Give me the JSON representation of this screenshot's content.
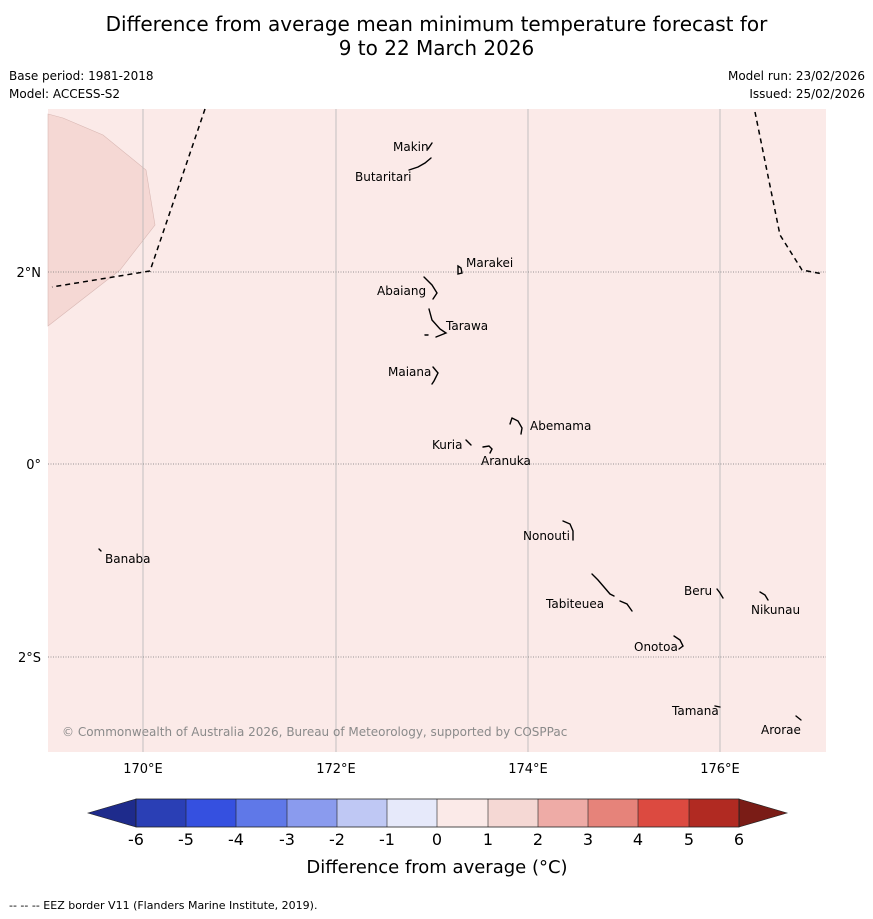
{
  "title": {
    "line1": "Difference from average mean minimum temperature forecast for",
    "line2": "9 to 22 March 2026"
  },
  "meta": {
    "base_period": "Base period: 1981-2018",
    "model": "Model: ACCESS-S2",
    "model_run": "Model run: 23/02/2026",
    "issued": "Issued: 25/02/2026"
  },
  "map": {
    "lon_labels": [
      "170°E",
      "172°E",
      "174°E",
      "176°E"
    ],
    "lat_labels": [
      "2°N",
      "0°",
      "2°S"
    ],
    "places": [
      "Makin",
      "Butaritari",
      "Marakei",
      "Abaiang",
      "Tarawa",
      "Maiana",
      "Abemama",
      "Kuria",
      "Aranuka",
      "Nonouti",
      "Banaba",
      "Beru",
      "Nikunau",
      "Tabiteuea",
      "Onotoa",
      "Tamana",
      "Arorae"
    ],
    "copyright": "© Commonwealth of Australia 2026, Bureau of Meteorology, supported by COSPPac",
    "colors": {
      "background_anomaly": "#fbeae8",
      "warm_patch": "#f5d8d4",
      "grid": "#aaaaaa"
    }
  },
  "colorbar": {
    "ticks": [
      "-6",
      "-5",
      "-4",
      "-3",
      "-2",
      "-1",
      "0",
      "1",
      "2",
      "3",
      "4",
      "5",
      "6"
    ],
    "label": "Difference from average (°C)",
    "colors": [
      "#1e2b8c",
      "#2a3fb5",
      "#3550e0",
      "#5f78e8",
      "#8a9bee",
      "#bfc8f4",
      "#e6e9fa",
      "#fbeae8",
      "#f5d8d4",
      "#eeaba6",
      "#e6837a",
      "#dc4a40",
      "#b12a22",
      "#7a1c16"
    ]
  },
  "footnote": "--  --  -- EEZ border V11 (Flanders Marine Institute, 2019)."
}
